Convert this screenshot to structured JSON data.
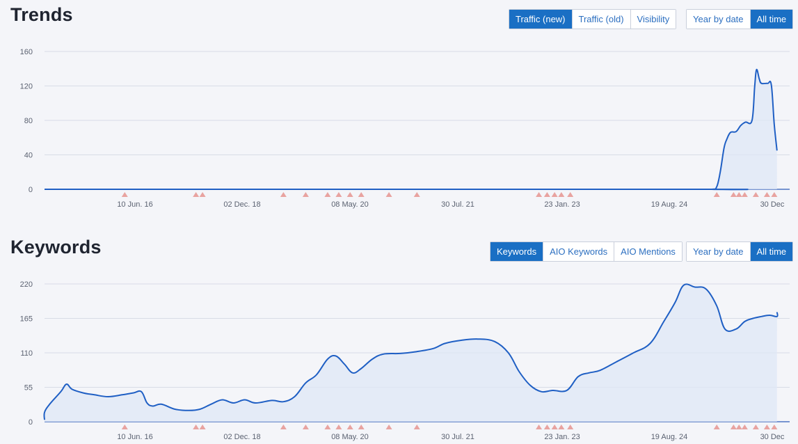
{
  "trends": {
    "title": "Trends",
    "metric_buttons": [
      {
        "label": "Traffic (new)",
        "active": true
      },
      {
        "label": "Traffic (old)",
        "active": false
      },
      {
        "label": "Visibility",
        "active": false
      }
    ],
    "range_buttons": [
      {
        "label": "Year by date",
        "active": false
      },
      {
        "label": "All time",
        "active": true
      }
    ]
  },
  "keywords": {
    "title": "Keywords",
    "metric_buttons": [
      {
        "label": "Keywords",
        "active": true
      },
      {
        "label": "AIO Keywords",
        "active": false
      },
      {
        "label": "AIO Mentions",
        "active": false
      }
    ],
    "range_buttons": [
      {
        "label": "Year by date",
        "active": false
      },
      {
        "label": "All time",
        "active": true
      }
    ]
  },
  "colors": {
    "line": "#1f5fc4",
    "area": "#dfe7f5",
    "grid": "#d8dce6",
    "marker": "#e8a3a0",
    "active_button": "#1a6fc4"
  },
  "chart_data": [
    {
      "type": "area",
      "name": "trends",
      "x_ticks": [
        "10 Jun. 16",
        "02 Dec. 18",
        "08 May. 20",
        "30 Jul. 21",
        "23 Jan. 23",
        "19 Aug. 24",
        "30 Dec"
      ],
      "y_ticks": [
        0,
        40,
        80,
        120,
        160
      ],
      "ylim": [
        0,
        160
      ],
      "xlim": [
        "2014-11-01",
        "2026-01-25"
      ],
      "series": [
        {
          "points": [
            [
              "2014-11-01",
              0
            ],
            [
              "2024-10-01",
              0
            ],
            [
              "2025-02-01",
              0
            ],
            [
              "2025-03-01",
              3
            ],
            [
              "2025-03-20",
              20
            ],
            [
              "2025-04-10",
              48
            ],
            [
              "2025-04-25",
              58
            ],
            [
              "2025-05-15",
              66
            ],
            [
              "2025-06-15",
              67
            ],
            [
              "2025-07-10",
              74
            ],
            [
              "2025-08-05",
              78
            ],
            [
              "2025-09-10",
              80
            ],
            [
              "2025-09-25",
              120
            ],
            [
              "2025-10-05",
              139
            ],
            [
              "2025-10-20",
              128
            ],
            [
              "2025-11-01",
              123
            ],
            [
              "2025-12-05",
              123
            ],
            [
              "2025-12-25",
              121
            ],
            [
              "2026-01-10",
              75
            ],
            [
              "2026-01-25",
              45
            ]
          ]
        }
      ],
      "markers": [
        "2016-04-15",
        "2017-05-10",
        "2017-06-15",
        "2018-09-01",
        "2019-01-01",
        "2019-05-01",
        "2019-07-01",
        "2019-09-01",
        "2019-11-01",
        "2020-04-01",
        "2020-09-01",
        "2022-07-01",
        "2022-08-15",
        "2022-09-25",
        "2022-11-01",
        "2022-12-20",
        "2025-03-01",
        "2025-06-01",
        "2025-07-01",
        "2025-08-01",
        "2025-10-01",
        "2025-12-01",
        "2026-01-10"
      ]
    },
    {
      "type": "area",
      "name": "keywords",
      "x_ticks": [
        "10 Jun. 16",
        "02 Dec. 18",
        "08 May. 20",
        "30 Jul. 21",
        "23 Jan. 23",
        "19 Aug. 24",
        "30 Dec"
      ],
      "y_ticks": [
        0,
        55,
        110,
        165,
        220
      ],
      "ylim": [
        0,
        220
      ],
      "xlim": [
        "2014-11-01",
        "2026-01-25"
      ],
      "series": [
        {
          "points": [
            [
              "2014-11-01",
              3
            ],
            [
              "2015-01-01",
              15
            ],
            [
              "2015-03-01",
              28
            ],
            [
              "2015-05-01",
              48
            ],
            [
              "2015-06-01",
              60
            ],
            [
              "2015-07-01",
              52
            ],
            [
              "2015-09-01",
              46
            ],
            [
              "2015-11-01",
              43
            ],
            [
              "2016-01-15",
              40
            ],
            [
              "2016-04-01",
              43
            ],
            [
              "2016-06-01",
              46
            ],
            [
              "2016-07-15",
              48
            ],
            [
              "2016-08-15",
              30
            ],
            [
              "2016-09-15",
              25
            ],
            [
              "2016-11-01",
              28
            ],
            [
              "2017-01-15",
              20
            ],
            [
              "2017-04-01",
              18
            ],
            [
              "2017-06-01",
              20
            ],
            [
              "2017-08-01",
              28
            ],
            [
              "2017-10-01",
              35
            ],
            [
              "2017-12-01",
              30
            ],
            [
              "2018-02-01",
              35
            ],
            [
              "2018-04-01",
              30
            ],
            [
              "2018-07-01",
              34
            ],
            [
              "2018-09-01",
              32
            ],
            [
              "2018-11-01",
              40
            ],
            [
              "2019-01-01",
              62
            ],
            [
              "2019-03-01",
              75
            ],
            [
              "2019-05-01",
              100
            ],
            [
              "2019-06-15",
              105
            ],
            [
              "2019-08-01",
              92
            ],
            [
              "2019-09-15",
              78
            ],
            [
              "2019-11-01",
              85
            ],
            [
              "2020-01-01",
              100
            ],
            [
              "2020-03-01",
              108
            ],
            [
              "2020-06-01",
              109
            ],
            [
              "2020-09-01",
              112
            ],
            [
              "2020-12-01",
              117
            ],
            [
              "2021-02-01",
              125
            ],
            [
              "2021-05-01",
              130
            ],
            [
              "2021-08-01",
              132
            ],
            [
              "2021-11-01",
              128
            ],
            [
              "2022-01-15",
              110
            ],
            [
              "2022-03-15",
              80
            ],
            [
              "2022-05-15",
              58
            ],
            [
              "2022-07-15",
              48
            ],
            [
              "2022-09-15",
              50
            ],
            [
              "2022-12-01",
              50
            ],
            [
              "2023-02-01",
              72
            ],
            [
              "2023-04-01",
              78
            ],
            [
              "2023-06-01",
              82
            ],
            [
              "2023-09-01",
              96
            ],
            [
              "2023-12-01",
              110
            ],
            [
              "2024-03-01",
              125
            ],
            [
              "2024-05-15",
              160
            ],
            [
              "2024-07-15",
              190
            ],
            [
              "2024-09-01",
              218
            ],
            [
              "2024-11-01",
              215
            ],
            [
              "2025-01-01",
              212
            ],
            [
              "2025-03-01",
              185
            ],
            [
              "2025-04-15",
              148
            ],
            [
              "2025-06-15",
              148
            ],
            [
              "2025-08-01",
              160
            ],
            [
              "2025-09-15",
              165
            ],
            [
              "2025-11-01",
              168
            ],
            [
              "2025-12-15",
              170
            ],
            [
              "2026-01-25",
              168
            ],
            [
              "2026-01-25",
              175
            ]
          ]
        }
      ],
      "markers": [
        "2016-04-15",
        "2017-05-10",
        "2017-06-15",
        "2018-09-01",
        "2019-01-01",
        "2019-05-01",
        "2019-07-01",
        "2019-09-01",
        "2019-11-01",
        "2020-04-01",
        "2020-09-01",
        "2022-07-01",
        "2022-08-15",
        "2022-09-25",
        "2022-11-01",
        "2022-12-20",
        "2025-03-01",
        "2025-06-01",
        "2025-07-01",
        "2025-08-01",
        "2025-10-01",
        "2025-12-01",
        "2026-01-10"
      ]
    }
  ]
}
